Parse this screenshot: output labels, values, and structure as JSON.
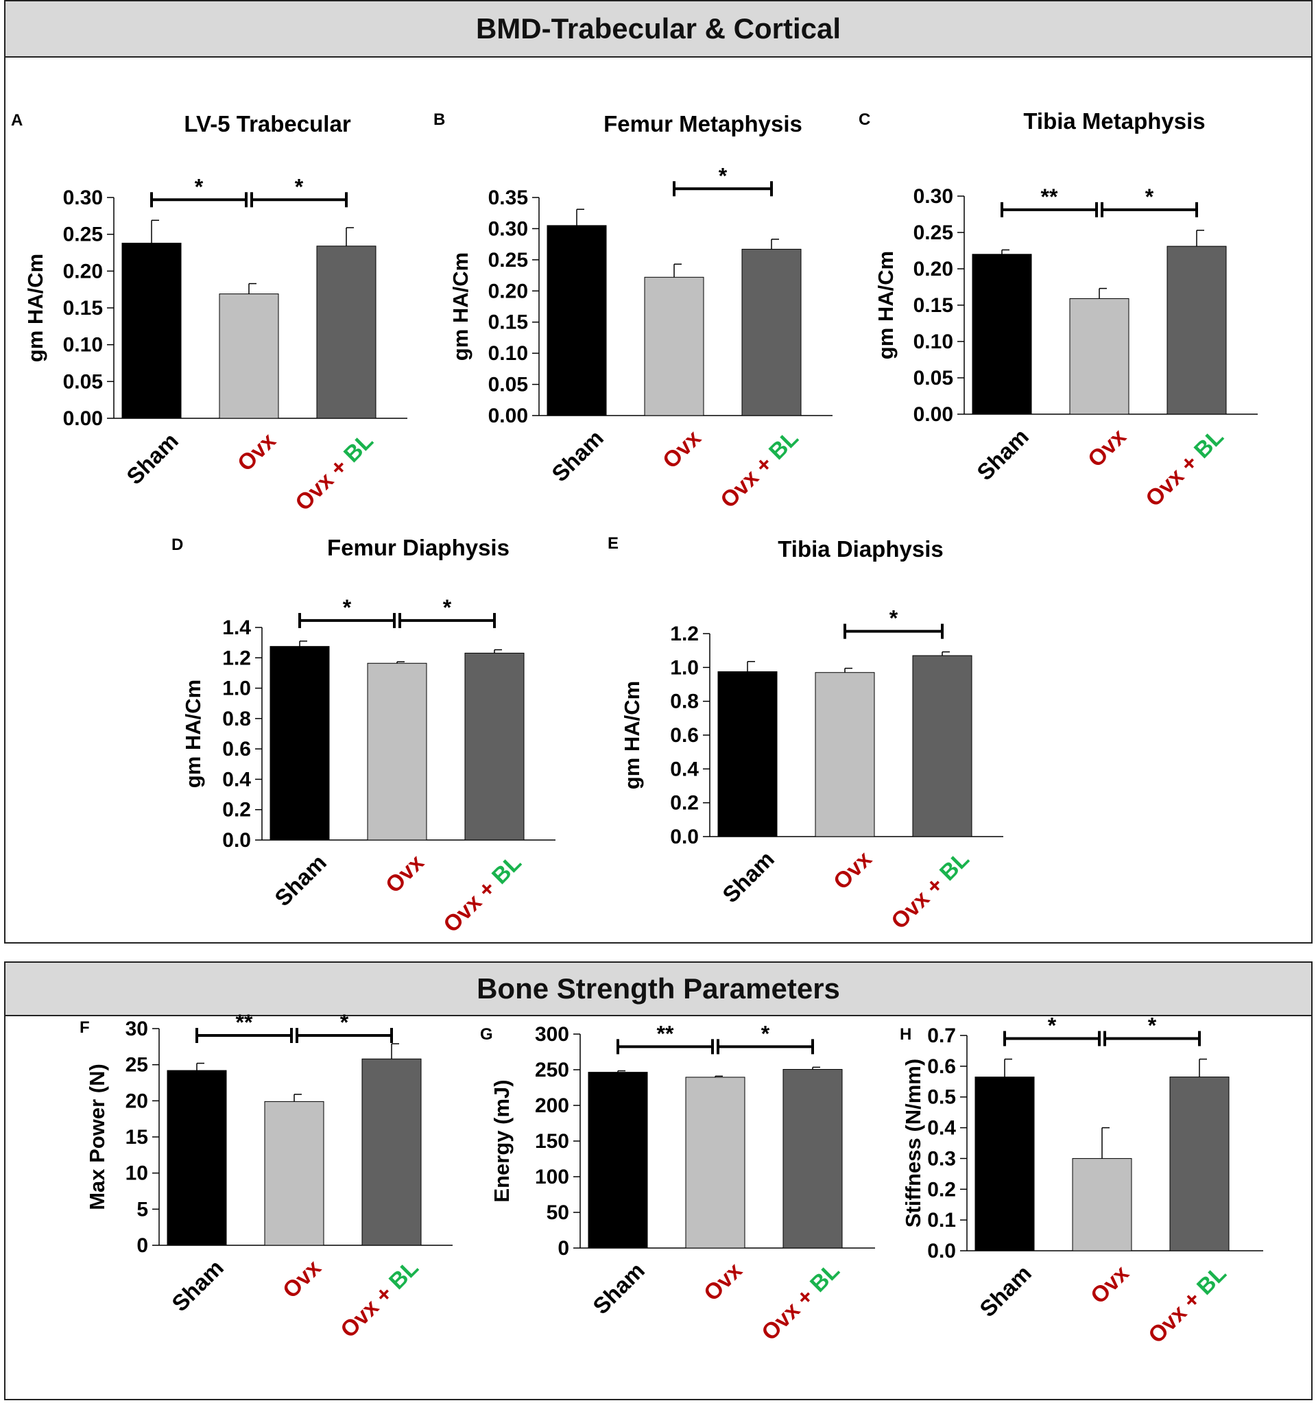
{
  "sections": [
    {
      "title": "BMD-Trabecular & Cortical"
    },
    {
      "title": "Bone Strength Parameters"
    }
  ],
  "colors": {
    "sham": "#000000",
    "ovx": "#c0c0c0",
    "ovxbl": "#616161",
    "ovx_text": "#b30000",
    "bl_text": "#19b34d"
  },
  "label_parts": {
    "sham": "Sham",
    "ovx": "Ovx",
    "plus": " + ",
    "bl": "BL"
  },
  "chart_data": [
    {
      "id": "A",
      "letter": "A",
      "type": "bar",
      "title": "LV-5 Trabecular",
      "ylabel": "gm HA/Cm",
      "categories": [
        "Sham",
        "Ovx",
        "Ovx + BL"
      ],
      "values": [
        0.238,
        0.169,
        0.234
      ],
      "errors": [
        0.031,
        0.014,
        0.025
      ],
      "ylim": [
        0,
        0.3
      ],
      "yticks": [
        "0.00",
        "0.05",
        "0.10",
        "0.15",
        "0.20",
        "0.25",
        "0.30"
      ],
      "sig": [
        {
          "from": 0,
          "to": 1,
          "label": "*"
        },
        {
          "from": 1,
          "to": 2,
          "label": "*"
        }
      ]
    },
    {
      "id": "B",
      "letter": "B",
      "type": "bar",
      "title": "Femur Metaphysis",
      "ylabel": "gm HA/Cm",
      "categories": [
        "Sham",
        "Ovx",
        "Ovx + BL"
      ],
      "values": [
        0.305,
        0.222,
        0.267
      ],
      "errors": [
        0.026,
        0.021,
        0.016
      ],
      "ylim": [
        0,
        0.35
      ],
      "yticks": [
        "0.00",
        "0.05",
        "0.10",
        "0.15",
        "0.20",
        "0.25",
        "0.30",
        "0.35"
      ],
      "sig": [
        {
          "from": 1,
          "to": 2,
          "label": "*"
        }
      ]
    },
    {
      "id": "C",
      "letter": "C",
      "type": "bar",
      "title": "Tibia Metaphysis",
      "ylabel": "gm HA/Cm",
      "categories": [
        "Sham",
        "Ovx",
        "Ovx + BL"
      ],
      "values": [
        0.22,
        0.159,
        0.231
      ],
      "errors": [
        0.006,
        0.014,
        0.022
      ],
      "ylim": [
        0,
        0.3
      ],
      "yticks": [
        "0.00",
        "0.05",
        "0.10",
        "0.15",
        "0.20",
        "0.25",
        "0.30"
      ],
      "sig": [
        {
          "from": 0,
          "to": 1,
          "label": "**"
        },
        {
          "from": 1,
          "to": 2,
          "label": "*"
        }
      ]
    },
    {
      "id": "D",
      "letter": "D",
      "type": "bar",
      "title": "Femur Diaphysis",
      "ylabel": "gm HA/Cm",
      "categories": [
        "Sham",
        "Ovx",
        "Ovx + BL"
      ],
      "values": [
        1.275,
        1.164,
        1.231
      ],
      "errors": [
        0.035,
        0.01,
        0.022
      ],
      "ylim": [
        0,
        1.4
      ],
      "yticks": [
        "0.0",
        "0.2",
        "0.4",
        "0.6",
        "0.8",
        "1.0",
        "1.2",
        "1.4"
      ],
      "sig": [
        {
          "from": 0,
          "to": 1,
          "label": "*"
        },
        {
          "from": 1,
          "to": 2,
          "label": "*"
        }
      ]
    },
    {
      "id": "E",
      "letter": "E",
      "type": "bar",
      "title": "Tibia Diaphysis",
      "ylabel": "gm HA/Cm",
      "categories": [
        "Sham",
        "Ovx",
        "Ovx + BL"
      ],
      "values": [
        0.975,
        0.97,
        1.07
      ],
      "errors": [
        0.06,
        0.025,
        0.022
      ],
      "ylim": [
        0,
        1.2
      ],
      "yticks": [
        "0.0",
        "0.2",
        "0.4",
        "0.6",
        "0.8",
        "1.0",
        "1.2"
      ],
      "sig": [
        {
          "from": 1,
          "to": 2,
          "label": "*"
        }
      ]
    },
    {
      "id": "F",
      "letter": "F",
      "type": "bar",
      "title": "",
      "ylabel": "Max Power (N)",
      "categories": [
        "Sham",
        "Ovx",
        "Ovx + BL"
      ],
      "values": [
        24.2,
        19.9,
        25.8
      ],
      "errors": [
        1.0,
        1.0,
        2.1
      ],
      "ylim": [
        0,
        30
      ],
      "yticks": [
        "0",
        "5",
        "10",
        "15",
        "20",
        "25",
        "30"
      ],
      "sig": [
        {
          "from": 0,
          "to": 1,
          "label": "**"
        },
        {
          "from": 1,
          "to": 2,
          "label": "*"
        }
      ]
    },
    {
      "id": "G",
      "letter": "G",
      "type": "bar",
      "title": "",
      "ylabel": "Energy (mJ)",
      "categories": [
        "Sham",
        "Ovx",
        "Ovx + BL"
      ],
      "values": [
        246.5,
        239.5,
        250.5
      ],
      "errors": [
        2.0,
        1.5,
        3.0
      ],
      "ylim": [
        0,
        300
      ],
      "yticks": [
        "0",
        "50",
        "100",
        "150",
        "200",
        "250",
        "300"
      ],
      "sig": [
        {
          "from": 0,
          "to": 1,
          "label": "**"
        },
        {
          "from": 1,
          "to": 2,
          "label": "*"
        }
      ]
    },
    {
      "id": "H",
      "letter": "H",
      "type": "bar",
      "title": "",
      "ylabel": "Stiffness (N/mm)",
      "categories": [
        "Sham",
        "Ovx",
        "Ovx + BL"
      ],
      "values": [
        0.565,
        0.3,
        0.565
      ],
      "errors": [
        0.058,
        0.1,
        0.058
      ],
      "ylim": [
        0,
        0.7
      ],
      "yticks": [
        "0.0",
        "0.1",
        "0.2",
        "0.3",
        "0.4",
        "0.5",
        "0.6",
        "0.7"
      ],
      "sig": [
        {
          "from": 0,
          "to": 1,
          "label": "*"
        },
        {
          "from": 1,
          "to": 2,
          "label": "*"
        }
      ]
    }
  ]
}
